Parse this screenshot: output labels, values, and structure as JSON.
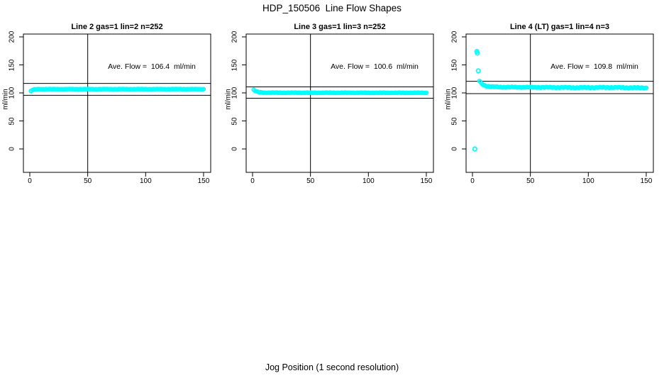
{
  "figure": {
    "title": "HDP_150506  Line Flow Shapes",
    "xlabel": "Jog Position (1 second resolution)",
    "marker_color": "#00FFFF",
    "axis_color": "#000000",
    "background_color": "#FFFFFF"
  },
  "chart_data": [
    {
      "type": "scatter",
      "title": "Line 2 gas=1 lin=2 n=252",
      "line": 2,
      "gas": 1,
      "lin": 2,
      "n": 252,
      "ave_flow": 106.4,
      "annotation": "Ave. Flow =  106.4  ml/min",
      "ylabel": "ml/min",
      "xticks": [
        0,
        50,
        100,
        150
      ],
      "yticks": [
        0,
        50,
        100,
        150,
        200
      ],
      "xlim": [
        -5,
        157
      ],
      "ylim": [
        -40,
        205
      ],
      "grid": false,
      "vline_x": 50,
      "hlines": [
        117.0,
        95.8
      ],
      "band": {
        "keyframes": [
          [
            1,
            103.2
          ],
          [
            2,
            104.8
          ],
          [
            4,
            106.3
          ],
          [
            8,
            106.7
          ],
          [
            150,
            106.7
          ]
        ],
        "x_step": 1,
        "wiggle": 0.35
      },
      "outliers": []
    },
    {
      "type": "scatter",
      "title": "Line 3 gas=1 lin=3 n=252",
      "line": 3,
      "gas": 1,
      "lin": 3,
      "n": 252,
      "ave_flow": 100.6,
      "annotation": "Ave. Flow =  100.6  ml/min",
      "ylabel": "ml/min",
      "xticks": [
        0,
        50,
        100,
        150
      ],
      "yticks": [
        0,
        50,
        100,
        150,
        200
      ],
      "xlim": [
        -5,
        157
      ],
      "ylim": [
        -40,
        205
      ],
      "grid": false,
      "vline_x": 50,
      "hlines": [
        110.7,
        90.5
      ],
      "band": {
        "keyframes": [
          [
            1,
            105.5
          ],
          [
            2,
            103.8
          ],
          [
            5,
            101.5
          ],
          [
            10,
            100.4
          ],
          [
            150,
            100.2
          ]
        ],
        "x_step": 1,
        "wiggle": 0.3
      },
      "outliers": []
    },
    {
      "type": "scatter",
      "title": "Line 4 (LT) gas=1 lin=4 n=3",
      "line": 4,
      "lt": true,
      "gas": 1,
      "lin": 4,
      "n": 3,
      "ave_flow": 109.8,
      "annotation": "Ave. Flow =  109.8  ml/min",
      "ylabel": "ml/min",
      "xticks": [
        0,
        50,
        100,
        150
      ],
      "yticks": [
        0,
        50,
        100,
        150,
        200
      ],
      "xlim": [
        -5,
        157
      ],
      "ylim": [
        -40,
        205
      ],
      "grid": false,
      "vline_x": 50,
      "hlines": [
        120.8,
        98.8
      ],
      "band": {
        "keyframes": [
          [
            6,
            121.5
          ],
          [
            8,
            116.5
          ],
          [
            11,
            113.0
          ],
          [
            15,
            111.2
          ],
          [
            25,
            110.4
          ],
          [
            60,
            110.0
          ],
          [
            90,
            109.5
          ],
          [
            120,
            109.8
          ],
          [
            150,
            109.0
          ]
        ],
        "x_step": 1,
        "wiggle": 0.9
      },
      "outliers": [
        [
          3.8,
          174
        ],
        [
          4.2,
          171
        ],
        [
          5,
          139.5
        ],
        [
          2,
          0
        ]
      ]
    }
  ]
}
